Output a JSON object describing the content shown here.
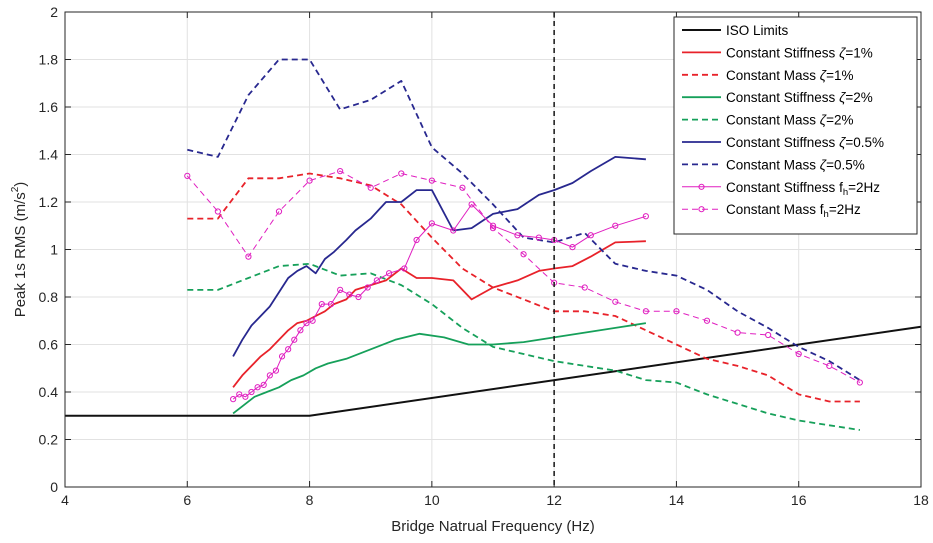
{
  "chart_data": {
    "type": "line",
    "title": "",
    "xlabel": "Bridge Natrual Frequency (Hz)",
    "ylabel": "Peak 1s RMS (m/s",
    "ylabel_sup": "2",
    "ylabel_close": ")",
    "xlim": [
      4,
      18
    ],
    "ylim": [
      0,
      2
    ],
    "xticks": [
      4,
      6,
      8,
      10,
      12,
      14,
      16,
      18
    ],
    "yticks": [
      0,
      0.2,
      0.4,
      0.6,
      0.8,
      1,
      1.2,
      1.4,
      1.6,
      1.8,
      2
    ],
    "ytick_labels": [
      "0",
      "0.2",
      "0.4",
      "0.6",
      "0.8",
      "1",
      "1.2",
      "1.4",
      "1.6",
      "1.8",
      "2"
    ],
    "grid": true,
    "legend_position": "top-right",
    "vline": {
      "x": 12,
      "color": "#222222",
      "style": "dashed"
    },
    "series": [
      {
        "name": "ISO Limits",
        "legend": [
          "ISO Limits"
        ],
        "color": "#111111",
        "dash": false,
        "marker": false,
        "width": 2,
        "x": [
          4,
          8,
          18
        ],
        "y": [
          0.3,
          0.3,
          0.675
        ]
      },
      {
        "name": "Constant Stiffness ζ=1%",
        "legend": [
          "Constant Stiffness ",
          "ζ",
          "=1%"
        ],
        "color": "#e8222a",
        "dash": false,
        "marker": false,
        "width": 1.8,
        "x": [
          6.75,
          6.9,
          7.05,
          7.2,
          7.35,
          7.5,
          7.65,
          7.8,
          7.95,
          8.1,
          8.25,
          8.4,
          8.6,
          8.75,
          9.0,
          9.25,
          9.5,
          9.75,
          10.0,
          10.35,
          10.65,
          11.0,
          11.4,
          11.75,
          12.0,
          12.3,
          12.6,
          13.0,
          13.5
        ],
        "y": [
          0.42,
          0.47,
          0.51,
          0.55,
          0.58,
          0.62,
          0.66,
          0.69,
          0.7,
          0.72,
          0.74,
          0.77,
          0.79,
          0.83,
          0.85,
          0.87,
          0.92,
          0.88,
          0.88,
          0.87,
          0.79,
          0.84,
          0.87,
          0.91,
          0.92,
          0.93,
          0.97,
          1.03,
          1.035
        ]
      },
      {
        "name": "Constant Mass ζ=1%",
        "legend": [
          "Constant Mass ",
          "ζ",
          "=1%"
        ],
        "color": "#e8222a",
        "dash": true,
        "marker": false,
        "width": 1.8,
        "x": [
          6.0,
          6.5,
          7.0,
          7.5,
          8.0,
          8.5,
          9.0,
          9.5,
          10.0,
          10.5,
          11.0,
          11.5,
          12.0,
          12.5,
          13.0,
          13.5,
          14.0,
          14.5,
          15.0,
          15.5,
          16.0,
          16.5,
          17.0
        ],
        "y": [
          1.13,
          1.13,
          1.3,
          1.3,
          1.32,
          1.3,
          1.27,
          1.19,
          1.05,
          0.92,
          0.84,
          0.79,
          0.74,
          0.74,
          0.72,
          0.66,
          0.6,
          0.54,
          0.51,
          0.47,
          0.39,
          0.36,
          0.36
        ]
      },
      {
        "name": "Constant Stiffness ζ=2%",
        "legend": [
          "Constant Stiffness ",
          "ζ",
          "=2%"
        ],
        "color": "#16a05a",
        "dash": false,
        "marker": false,
        "width": 1.8,
        "x": [
          6.75,
          6.9,
          7.1,
          7.3,
          7.5,
          7.7,
          7.9,
          8.1,
          8.3,
          8.6,
          9.0,
          9.4,
          9.8,
          10.2,
          10.6,
          11.0,
          11.5,
          12.0,
          12.5,
          13.0,
          13.5
        ],
        "y": [
          0.31,
          0.34,
          0.38,
          0.4,
          0.42,
          0.45,
          0.47,
          0.5,
          0.52,
          0.54,
          0.58,
          0.62,
          0.645,
          0.63,
          0.6,
          0.6,
          0.61,
          0.63,
          0.65,
          0.67,
          0.69
        ]
      },
      {
        "name": "Constant Mass ζ=2%",
        "legend": [
          "Constant Mass ",
          "ζ",
          "=2%"
        ],
        "color": "#16a05a",
        "dash": true,
        "marker": false,
        "width": 1.8,
        "x": [
          6.0,
          6.5,
          7.0,
          7.5,
          8.0,
          8.5,
          9.0,
          9.5,
          10.0,
          10.5,
          11.0,
          11.5,
          12.0,
          12.5,
          13.0,
          13.5,
          14.0,
          14.5,
          15.0,
          15.5,
          16.0,
          16.5,
          17.0
        ],
        "y": [
          0.83,
          0.83,
          0.88,
          0.93,
          0.94,
          0.89,
          0.9,
          0.85,
          0.77,
          0.67,
          0.59,
          0.56,
          0.53,
          0.51,
          0.49,
          0.45,
          0.44,
          0.39,
          0.35,
          0.31,
          0.28,
          0.26,
          0.24
        ]
      },
      {
        "name": "Constant Stiffness ζ=0.5%",
        "legend": [
          "Constant Stiffness ",
          "ζ",
          "=0.5%"
        ],
        "color": "#28288f",
        "dash": false,
        "marker": false,
        "width": 1.8,
        "x": [
          6.75,
          6.9,
          7.05,
          7.2,
          7.35,
          7.5,
          7.65,
          7.8,
          7.95,
          8.1,
          8.25,
          8.4,
          8.6,
          8.75,
          9.0,
          9.25,
          9.5,
          9.75,
          10.0,
          10.35,
          10.65,
          11.0,
          11.4,
          11.75,
          12.0,
          12.3,
          12.6,
          13.0,
          13.5
        ],
        "y": [
          0.55,
          0.62,
          0.68,
          0.72,
          0.76,
          0.82,
          0.88,
          0.91,
          0.93,
          0.9,
          0.96,
          0.99,
          1.04,
          1.08,
          1.13,
          1.2,
          1.2,
          1.25,
          1.25,
          1.08,
          1.09,
          1.15,
          1.17,
          1.23,
          1.25,
          1.28,
          1.33,
          1.39,
          1.38
        ]
      },
      {
        "name": "Constant Mass ζ=0.5%",
        "legend": [
          "Constant Mass ",
          "ζ",
          "=0.5%"
        ],
        "color": "#28288f",
        "dash": true,
        "marker": false,
        "width": 1.8,
        "x": [
          6.0,
          6.5,
          7.0,
          7.5,
          8.0,
          8.5,
          9.0,
          9.5,
          10.0,
          10.5,
          11.0,
          11.5,
          12.0,
          12.5,
          13.0,
          13.5,
          14.0,
          14.5,
          15.0,
          15.5,
          16.0,
          16.5,
          17.0
        ],
        "y": [
          1.42,
          1.39,
          1.65,
          1.8,
          1.8,
          1.59,
          1.63,
          1.71,
          1.43,
          1.32,
          1.19,
          1.05,
          1.03,
          1.07,
          0.94,
          0.91,
          0.89,
          0.83,
          0.74,
          0.67,
          0.59,
          0.53,
          0.45
        ]
      },
      {
        "name": "Constant Stiffness fh=2Hz",
        "legend": [
          "Constant Stiffness f",
          "h",
          "=2Hz"
        ],
        "color": "#e01fc0",
        "dash": false,
        "marker": true,
        "width": 1,
        "x": [
          6.75,
          6.85,
          6.95,
          7.05,
          7.15,
          7.25,
          7.35,
          7.45,
          7.55,
          7.65,
          7.75,
          7.85,
          7.95,
          8.05,
          8.2,
          8.35,
          8.5,
          8.65,
          8.8,
          8.95,
          9.1,
          9.3,
          9.55,
          9.75,
          10.0,
          10.35,
          10.65,
          11.0,
          11.4,
          11.75,
          12.0,
          12.3,
          12.6,
          13.0,
          13.5
        ],
        "y": [
          0.37,
          0.39,
          0.38,
          0.4,
          0.42,
          0.43,
          0.47,
          0.49,
          0.55,
          0.58,
          0.62,
          0.66,
          0.69,
          0.7,
          0.77,
          0.77,
          0.83,
          0.81,
          0.8,
          0.84,
          0.87,
          0.9,
          0.92,
          1.04,
          1.11,
          1.08,
          1.19,
          1.1,
          1.06,
          1.05,
          1.04,
          1.01,
          1.06,
          1.1,
          1.14
        ]
      },
      {
        "name": "Constant Mass fh=2Hz",
        "legend": [
          "Constant Mass f",
          "h",
          "=2Hz"
        ],
        "color": "#e01fc0",
        "dash": true,
        "marker": true,
        "width": 1,
        "x": [
          6.0,
          6.5,
          7.0,
          7.5,
          8.0,
          8.5,
          9.0,
          9.5,
          10.0,
          10.5,
          11.0,
          11.5,
          12.0,
          12.5,
          13.0,
          13.5,
          14.0,
          14.5,
          15.0,
          15.5,
          16.0,
          16.5,
          17.0
        ],
        "y": [
          1.31,
          1.16,
          0.97,
          1.16,
          1.29,
          1.33,
          1.26,
          1.32,
          1.29,
          1.26,
          1.09,
          0.98,
          0.86,
          0.84,
          0.78,
          0.74,
          0.74,
          0.7,
          0.65,
          0.64,
          0.56,
          0.51,
          0.44
        ]
      }
    ]
  }
}
